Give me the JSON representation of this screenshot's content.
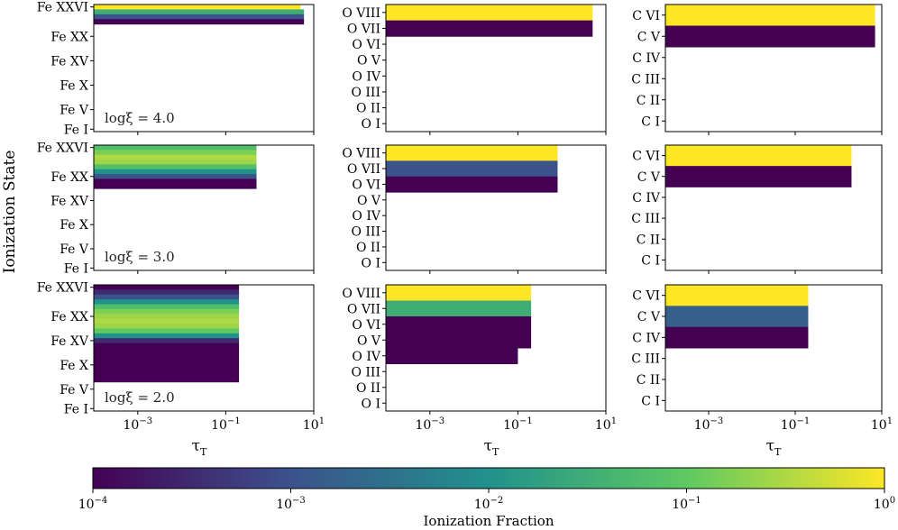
{
  "figure": {
    "ylabel": "Ionization State",
    "xlabel_base": "τ",
    "xlabel_sub": "T",
    "colorbar_label": "Ionization Fraction"
  },
  "chart_data": {
    "type": "heatmap",
    "colormap": "viridis",
    "colormap_stops": [
      "#440154",
      "#3b528b",
      "#21918c",
      "#5ec962",
      "#fde725"
    ],
    "xscale": "log",
    "xlim": [
      0.0001,
      10
    ],
    "xticks": [
      {
        "base": "10",
        "exp": "−3",
        "value": 0.001
      },
      {
        "base": "10",
        "exp": "−1",
        "value": 0.1
      },
      {
        "base": "10",
        "exp": "1",
        "value": 10
      }
    ],
    "colorbar": {
      "scale": "log",
      "range": [
        0.0001,
        1
      ],
      "ticks": [
        {
          "base": "10",
          "exp": "−4",
          "value": 0.0001
        },
        {
          "base": "10",
          "exp": "−3",
          "value": 0.001
        },
        {
          "base": "10",
          "exp": "−2",
          "value": 0.01
        },
        {
          "base": "10",
          "exp": "−1",
          "value": 0.1
        },
        {
          "base": "10",
          "exp": "0",
          "value": 1
        }
      ]
    },
    "rows": [
      {
        "label": "logξ = 4.0",
        "logxi": 4.0
      },
      {
        "label": "logξ = 3.0",
        "logxi": 3.0
      },
      {
        "label": "logξ = 2.0",
        "logxi": 2.0
      }
    ],
    "panels": [
      {
        "element": "Fe",
        "row": 0,
        "ylim": [
          0,
          26
        ],
        "yticks": [
          {
            "label": "Fe XXVI",
            "value": 26
          },
          {
            "label": "Fe XX",
            "value": 20
          },
          {
            "label": "Fe XV",
            "value": 15
          },
          {
            "label": "Fe X",
            "value": 10
          },
          {
            "label": "Fe V",
            "value": 5
          },
          {
            "label": "Fe I",
            "value": 1
          }
        ],
        "bands": [
          {
            "state": 26,
            "cutoff_tau": 5,
            "log_fraction": 0
          },
          {
            "state": 25,
            "cutoff_tau": 6,
            "log_fraction": -1.5
          },
          {
            "state": 24,
            "cutoff_tau": 6,
            "log_fraction": -3
          },
          {
            "state": 23,
            "cutoff_tau": 6,
            "log_fraction": -4
          }
        ]
      },
      {
        "element": "O",
        "row": 0,
        "ylim": [
          0,
          8
        ],
        "yticks": [
          {
            "label": "O VIII",
            "value": 8
          },
          {
            "label": "O VII",
            "value": 7
          },
          {
            "label": "O VI",
            "value": 6
          },
          {
            "label": "O V",
            "value": 5
          },
          {
            "label": "O IV",
            "value": 4
          },
          {
            "label": "O III",
            "value": 3
          },
          {
            "label": "O II",
            "value": 2
          },
          {
            "label": "O I",
            "value": 1
          }
        ],
        "bands": [
          {
            "state": 8,
            "cutoff_tau": 5,
            "log_fraction": 0
          },
          {
            "state": 7,
            "cutoff_tau": 5,
            "log_fraction": -4
          }
        ]
      },
      {
        "element": "C",
        "row": 0,
        "ylim": [
          0,
          6
        ],
        "yticks": [
          {
            "label": "C VI",
            "value": 6
          },
          {
            "label": "C V",
            "value": 5
          },
          {
            "label": "C IV",
            "value": 4
          },
          {
            "label": "C III",
            "value": 3
          },
          {
            "label": "C II",
            "value": 2
          },
          {
            "label": "C I",
            "value": 1
          }
        ],
        "bands": [
          {
            "state": 6,
            "cutoff_tau": 7,
            "log_fraction": 0
          },
          {
            "state": 5,
            "cutoff_tau": 7,
            "log_fraction": -4
          }
        ]
      },
      {
        "element": "Fe",
        "row": 1,
        "ylim": [
          0,
          26
        ],
        "yticks": [
          {
            "label": "Fe XXVI",
            "value": 26
          },
          {
            "label": "Fe XX",
            "value": 20
          },
          {
            "label": "Fe XV",
            "value": 15
          },
          {
            "label": "Fe X",
            "value": 10
          },
          {
            "label": "Fe V",
            "value": 5
          },
          {
            "label": "Fe I",
            "value": 1
          }
        ],
        "bands": [
          {
            "state": 26,
            "cutoff_tau": 0.5,
            "log_fraction": -1.2
          },
          {
            "state": 25,
            "cutoff_tau": 0.5,
            "log_fraction": -0.8
          },
          {
            "state": 24,
            "cutoff_tau": 0.5,
            "log_fraction": -0.5
          },
          {
            "state": 23,
            "cutoff_tau": 0.5,
            "log_fraction": -0.6
          },
          {
            "state": 22,
            "cutoff_tau": 0.5,
            "log_fraction": -1.2
          },
          {
            "state": 21,
            "cutoff_tau": 0.5,
            "log_fraction": -2.0
          },
          {
            "state": 20,
            "cutoff_tau": 0.5,
            "log_fraction": -3.0
          },
          {
            "state": 19,
            "cutoff_tau": 0.5,
            "log_fraction": -4
          },
          {
            "state": 18,
            "cutoff_tau": 0.5,
            "log_fraction": -4
          }
        ]
      },
      {
        "element": "O",
        "row": 1,
        "ylim": [
          0,
          8
        ],
        "yticks": [
          {
            "label": "O VIII",
            "value": 8
          },
          {
            "label": "O VII",
            "value": 7
          },
          {
            "label": "O VI",
            "value": 6
          },
          {
            "label": "O V",
            "value": 5
          },
          {
            "label": "O IV",
            "value": 4
          },
          {
            "label": "O III",
            "value": 3
          },
          {
            "label": "O II",
            "value": 2
          },
          {
            "label": "O I",
            "value": 1
          }
        ],
        "bands": [
          {
            "state": 8,
            "cutoff_tau": 0.8,
            "log_fraction": 0
          },
          {
            "state": 7,
            "cutoff_tau": 0.8,
            "log_fraction": -3
          },
          {
            "state": 6,
            "cutoff_tau": 0.8,
            "log_fraction": -4
          }
        ]
      },
      {
        "element": "C",
        "row": 1,
        "ylim": [
          0,
          6
        ],
        "yticks": [
          {
            "label": "C VI",
            "value": 6
          },
          {
            "label": "C V",
            "value": 5
          },
          {
            "label": "C IV",
            "value": 4
          },
          {
            "label": "C III",
            "value": 3
          },
          {
            "label": "C II",
            "value": 2
          },
          {
            "label": "C I",
            "value": 1
          }
        ],
        "bands": [
          {
            "state": 6,
            "cutoff_tau": 2,
            "log_fraction": 0
          },
          {
            "state": 5,
            "cutoff_tau": 2,
            "log_fraction": -4
          }
        ]
      },
      {
        "element": "Fe",
        "row": 2,
        "ylim": [
          0,
          26
        ],
        "yticks": [
          {
            "label": "Fe XXVI",
            "value": 26
          },
          {
            "label": "Fe XX",
            "value": 20
          },
          {
            "label": "Fe XV",
            "value": 15
          },
          {
            "label": "Fe X",
            "value": 10
          },
          {
            "label": "Fe V",
            "value": 5
          },
          {
            "label": "Fe I",
            "value": 1
          }
        ],
        "bands": [
          {
            "state": 26,
            "cutoff_tau": 0.2,
            "log_fraction": -4
          },
          {
            "state": 25,
            "cutoff_tau": 0.2,
            "log_fraction": -3.5
          },
          {
            "state": 24,
            "cutoff_tau": 0.2,
            "log_fraction": -3
          },
          {
            "state": 23,
            "cutoff_tau": 0.2,
            "log_fraction": -2
          },
          {
            "state": 22,
            "cutoff_tau": 0.2,
            "log_fraction": -1.2
          },
          {
            "state": 21,
            "cutoff_tau": 0.2,
            "log_fraction": -0.8
          },
          {
            "state": 20,
            "cutoff_tau": 0.2,
            "log_fraction": -0.6
          },
          {
            "state": 19,
            "cutoff_tau": 0.2,
            "log_fraction": -0.5
          },
          {
            "state": 18,
            "cutoff_tau": 0.2,
            "log_fraction": -0.6
          },
          {
            "state": 17,
            "cutoff_tau": 0.2,
            "log_fraction": -1.0
          },
          {
            "state": 16,
            "cutoff_tau": 0.2,
            "log_fraction": -2.0
          },
          {
            "state": 15,
            "cutoff_tau": 0.2,
            "log_fraction": -3.5
          },
          {
            "state": 14,
            "cutoff_tau": 0.2,
            "log_fraction": -4
          },
          {
            "state": 13,
            "cutoff_tau": 0.2,
            "log_fraction": -4
          },
          {
            "state": 12,
            "cutoff_tau": 0.2,
            "log_fraction": -4
          },
          {
            "state": 11,
            "cutoff_tau": 0.2,
            "log_fraction": -4
          },
          {
            "state": 10,
            "cutoff_tau": 0.2,
            "log_fraction": -4
          },
          {
            "state": 9,
            "cutoff_tau": 0.2,
            "log_fraction": -4
          },
          {
            "state": 8,
            "cutoff_tau": 0.2,
            "log_fraction": -4
          },
          {
            "state": 7,
            "cutoff_tau": 0.2,
            "log_fraction": -4
          }
        ]
      },
      {
        "element": "O",
        "row": 2,
        "ylim": [
          0,
          8
        ],
        "yticks": [
          {
            "label": "O VIII",
            "value": 8
          },
          {
            "label": "O VII",
            "value": 7
          },
          {
            "label": "O VI",
            "value": 6
          },
          {
            "label": "O V",
            "value": 5
          },
          {
            "label": "O IV",
            "value": 4
          },
          {
            "label": "O III",
            "value": 3
          },
          {
            "label": "O II",
            "value": 2
          },
          {
            "label": "O I",
            "value": 1
          }
        ],
        "bands": [
          {
            "state": 8,
            "cutoff_tau": 0.2,
            "log_fraction": 0
          },
          {
            "state": 7,
            "cutoff_tau": 0.2,
            "log_fraction": -1.5
          },
          {
            "state": 6,
            "cutoff_tau": 0.2,
            "log_fraction": -4
          },
          {
            "state": 5,
            "cutoff_tau": 0.2,
            "log_fraction": -4
          },
          {
            "state": 4,
            "cutoff_tau": 0.1,
            "log_fraction": -4
          }
        ]
      },
      {
        "element": "C",
        "row": 2,
        "ylim": [
          0,
          6
        ],
        "yticks": [
          {
            "label": "C VI",
            "value": 6
          },
          {
            "label": "C V",
            "value": 5
          },
          {
            "label": "C IV",
            "value": 4
          },
          {
            "label": "C III",
            "value": 3
          },
          {
            "label": "C II",
            "value": 2
          },
          {
            "label": "C I",
            "value": 1
          }
        ],
        "bands": [
          {
            "state": 6,
            "cutoff_tau": 0.2,
            "log_fraction": 0
          },
          {
            "state": 5,
            "cutoff_tau": 0.2,
            "log_fraction": -2.8
          },
          {
            "state": 4,
            "cutoff_tau": 0.2,
            "log_fraction": -4
          }
        ]
      }
    ]
  }
}
